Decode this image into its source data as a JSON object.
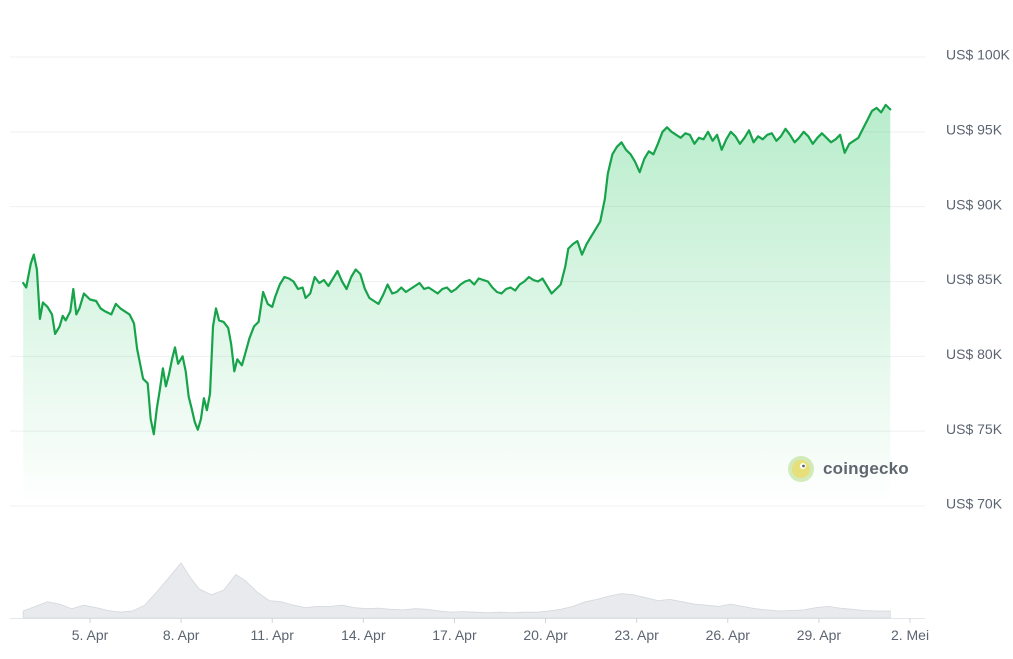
{
  "colors": {
    "line": "#16a34a",
    "fill": "#22c55e",
    "volume": "#e4e6ea"
  },
  "watermark": {
    "text": "coingecko"
  },
  "chart_data": {
    "type": "line",
    "ylim": [
      70000,
      100000
    ],
    "yticks": [
      {
        "value": 100000,
        "label": "US$ 100K"
      },
      {
        "value": 95000,
        "label": "US$ 95K"
      },
      {
        "value": 90000,
        "label": "US$ 90K"
      },
      {
        "value": 85000,
        "label": "US$ 85K"
      },
      {
        "value": 80000,
        "label": "US$ 80K"
      },
      {
        "value": 75000,
        "label": "US$ 75K"
      },
      {
        "value": 70000,
        "label": "US$ 70K"
      }
    ],
    "xlim": [
      2.8,
      33.4
    ],
    "xticks": [
      {
        "value": 5,
        "label": "5. Apr"
      },
      {
        "value": 8,
        "label": "8. Apr"
      },
      {
        "value": 11,
        "label": "11. Apr"
      },
      {
        "value": 14,
        "label": "14. Apr"
      },
      {
        "value": 17,
        "label": "17. Apr"
      },
      {
        "value": 20,
        "label": "20. Apr"
      },
      {
        "value": 23,
        "label": "23. Apr"
      },
      {
        "value": 26,
        "label": "26. Apr"
      },
      {
        "value": 29,
        "label": "29. Apr"
      },
      {
        "value": 32,
        "label": "2. Mei"
      }
    ],
    "series": [
      {
        "values": [
          [
            2.8,
            84900
          ],
          [
            2.9,
            84600
          ],
          [
            3.05,
            86200
          ],
          [
            3.15,
            86800
          ],
          [
            3.25,
            85800
          ],
          [
            3.35,
            82500
          ],
          [
            3.45,
            83600
          ],
          [
            3.6,
            83300
          ],
          [
            3.75,
            82800
          ],
          [
            3.85,
            81500
          ],
          [
            4.0,
            82000
          ],
          [
            4.1,
            82700
          ],
          [
            4.2,
            82400
          ],
          [
            4.35,
            83000
          ],
          [
            4.45,
            84500
          ],
          [
            4.55,
            82800
          ],
          [
            4.65,
            83200
          ],
          [
            4.8,
            84200
          ],
          [
            5.0,
            83800
          ],
          [
            5.2,
            83700
          ],
          [
            5.35,
            83200
          ],
          [
            5.5,
            83000
          ],
          [
            5.7,
            82800
          ],
          [
            5.85,
            83500
          ],
          [
            6.0,
            83200
          ],
          [
            6.15,
            83000
          ],
          [
            6.3,
            82800
          ],
          [
            6.45,
            82200
          ],
          [
            6.55,
            80500
          ],
          [
            6.65,
            79500
          ],
          [
            6.75,
            78500
          ],
          [
            6.9,
            78200
          ],
          [
            7.0,
            75800
          ],
          [
            7.1,
            74800
          ],
          [
            7.2,
            76500
          ],
          [
            7.3,
            77800
          ],
          [
            7.4,
            79200
          ],
          [
            7.5,
            78000
          ],
          [
            7.6,
            78800
          ],
          [
            7.7,
            79800
          ],
          [
            7.8,
            80600
          ],
          [
            7.9,
            79500
          ],
          [
            8.05,
            80000
          ],
          [
            8.15,
            79000
          ],
          [
            8.25,
            77300
          ],
          [
            8.35,
            76500
          ],
          [
            8.45,
            75600
          ],
          [
            8.55,
            75100
          ],
          [
            8.65,
            75800
          ],
          [
            8.75,
            77200
          ],
          [
            8.85,
            76400
          ],
          [
            8.95,
            77500
          ],
          [
            9.05,
            82000
          ],
          [
            9.15,
            83200
          ],
          [
            9.25,
            82400
          ],
          [
            9.4,
            82300
          ],
          [
            9.55,
            81900
          ],
          [
            9.65,
            80800
          ],
          [
            9.75,
            79000
          ],
          [
            9.85,
            79800
          ],
          [
            10.0,
            79400
          ],
          [
            10.1,
            80100
          ],
          [
            10.25,
            81200
          ],
          [
            10.4,
            82000
          ],
          [
            10.55,
            82300
          ],
          [
            10.7,
            84300
          ],
          [
            10.85,
            83500
          ],
          [
            11.0,
            83300
          ],
          [
            11.1,
            84000
          ],
          [
            11.25,
            84800
          ],
          [
            11.4,
            85300
          ],
          [
            11.55,
            85200
          ],
          [
            11.7,
            85000
          ],
          [
            11.85,
            84500
          ],
          [
            12.0,
            84600
          ],
          [
            12.1,
            83900
          ],
          [
            12.25,
            84200
          ],
          [
            12.4,
            85300
          ],
          [
            12.55,
            84900
          ],
          [
            12.7,
            85100
          ],
          [
            12.85,
            84700
          ],
          [
            13.0,
            85200
          ],
          [
            13.15,
            85700
          ],
          [
            13.3,
            85000
          ],
          [
            13.45,
            84500
          ],
          [
            13.6,
            85300
          ],
          [
            13.75,
            85800
          ],
          [
            13.9,
            85500
          ],
          [
            14.05,
            84500
          ],
          [
            14.2,
            83900
          ],
          [
            14.35,
            83700
          ],
          [
            14.5,
            83500
          ],
          [
            14.65,
            84100
          ],
          [
            14.8,
            84800
          ],
          [
            14.95,
            84200
          ],
          [
            15.1,
            84300
          ],
          [
            15.25,
            84600
          ],
          [
            15.4,
            84300
          ],
          [
            15.55,
            84500
          ],
          [
            15.7,
            84700
          ],
          [
            15.85,
            84900
          ],
          [
            16.0,
            84500
          ],
          [
            16.15,
            84600
          ],
          [
            16.3,
            84400
          ],
          [
            16.45,
            84200
          ],
          [
            16.6,
            84500
          ],
          [
            16.75,
            84600
          ],
          [
            16.9,
            84300
          ],
          [
            17.05,
            84500
          ],
          [
            17.2,
            84800
          ],
          [
            17.35,
            85000
          ],
          [
            17.5,
            85100
          ],
          [
            17.65,
            84800
          ],
          [
            17.8,
            85200
          ],
          [
            17.95,
            85100
          ],
          [
            18.1,
            85000
          ],
          [
            18.25,
            84600
          ],
          [
            18.4,
            84300
          ],
          [
            18.55,
            84200
          ],
          [
            18.7,
            84500
          ],
          [
            18.85,
            84600
          ],
          [
            19.0,
            84400
          ],
          [
            19.15,
            84800
          ],
          [
            19.3,
            85000
          ],
          [
            19.45,
            85300
          ],
          [
            19.6,
            85100
          ],
          [
            19.75,
            85000
          ],
          [
            19.9,
            85200
          ],
          [
            20.05,
            84700
          ],
          [
            20.2,
            84200
          ],
          [
            20.35,
            84500
          ],
          [
            20.5,
            84800
          ],
          [
            20.65,
            86000
          ],
          [
            20.75,
            87200
          ],
          [
            20.9,
            87500
          ],
          [
            21.05,
            87700
          ],
          [
            21.2,
            86800
          ],
          [
            21.35,
            87500
          ],
          [
            21.5,
            88000
          ],
          [
            21.65,
            88500
          ],
          [
            21.8,
            89000
          ],
          [
            21.95,
            90500
          ],
          [
            22.05,
            92200
          ],
          [
            22.2,
            93500
          ],
          [
            22.35,
            94000
          ],
          [
            22.5,
            94300
          ],
          [
            22.65,
            93800
          ],
          [
            22.8,
            93500
          ],
          [
            22.95,
            93000
          ],
          [
            23.1,
            92300
          ],
          [
            23.25,
            93200
          ],
          [
            23.4,
            93700
          ],
          [
            23.55,
            93500
          ],
          [
            23.7,
            94200
          ],
          [
            23.85,
            95000
          ],
          [
            24.0,
            95300
          ],
          [
            24.15,
            95000
          ],
          [
            24.3,
            94800
          ],
          [
            24.45,
            94600
          ],
          [
            24.6,
            94900
          ],
          [
            24.75,
            94800
          ],
          [
            24.9,
            94200
          ],
          [
            25.05,
            94600
          ],
          [
            25.2,
            94500
          ],
          [
            25.35,
            95000
          ],
          [
            25.5,
            94400
          ],
          [
            25.65,
            94800
          ],
          [
            25.8,
            93800
          ],
          [
            25.95,
            94500
          ],
          [
            26.1,
            95000
          ],
          [
            26.25,
            94700
          ],
          [
            26.4,
            94200
          ],
          [
            26.55,
            94600
          ],
          [
            26.7,
            95100
          ],
          [
            26.85,
            94300
          ],
          [
            27.0,
            94700
          ],
          [
            27.15,
            94500
          ],
          [
            27.3,
            94800
          ],
          [
            27.45,
            94900
          ],
          [
            27.6,
            94400
          ],
          [
            27.75,
            94700
          ],
          [
            27.9,
            95200
          ],
          [
            28.05,
            94800
          ],
          [
            28.2,
            94300
          ],
          [
            28.35,
            94600
          ],
          [
            28.5,
            95000
          ],
          [
            28.65,
            94700
          ],
          [
            28.8,
            94200
          ],
          [
            28.95,
            94600
          ],
          [
            29.1,
            94900
          ],
          [
            29.25,
            94600
          ],
          [
            29.4,
            94300
          ],
          [
            29.55,
            94500
          ],
          [
            29.7,
            94800
          ],
          [
            29.85,
            93600
          ],
          [
            30.0,
            94200
          ],
          [
            30.15,
            94400
          ],
          [
            30.3,
            94600
          ],
          [
            30.45,
            95200
          ],
          [
            30.6,
            95800
          ],
          [
            30.75,
            96400
          ],
          [
            30.9,
            96600
          ],
          [
            31.05,
            96300
          ],
          [
            31.2,
            96800
          ],
          [
            31.35,
            96500
          ]
        ]
      }
    ],
    "volume": [
      [
        2.8,
        0.12
      ],
      [
        3.2,
        0.2
      ],
      [
        3.6,
        0.28
      ],
      [
        4.0,
        0.24
      ],
      [
        4.4,
        0.16
      ],
      [
        4.8,
        0.22
      ],
      [
        5.2,
        0.18
      ],
      [
        5.6,
        0.13
      ],
      [
        6.0,
        0.1
      ],
      [
        6.4,
        0.12
      ],
      [
        6.8,
        0.22
      ],
      [
        7.2,
        0.45
      ],
      [
        7.6,
        0.7
      ],
      [
        8.0,
        0.95
      ],
      [
        8.3,
        0.7
      ],
      [
        8.6,
        0.5
      ],
      [
        9.0,
        0.4
      ],
      [
        9.4,
        0.48
      ],
      [
        9.8,
        0.75
      ],
      [
        10.1,
        0.65
      ],
      [
        10.5,
        0.45
      ],
      [
        10.9,
        0.3
      ],
      [
        11.3,
        0.28
      ],
      [
        11.7,
        0.22
      ],
      [
        12.1,
        0.18
      ],
      [
        12.5,
        0.2
      ],
      [
        12.9,
        0.2
      ],
      [
        13.3,
        0.22
      ],
      [
        13.7,
        0.18
      ],
      [
        14.1,
        0.16
      ],
      [
        14.5,
        0.17
      ],
      [
        14.9,
        0.15
      ],
      [
        15.3,
        0.14
      ],
      [
        15.7,
        0.16
      ],
      [
        16.1,
        0.15
      ],
      [
        16.5,
        0.12
      ],
      [
        16.9,
        0.1
      ],
      [
        17.3,
        0.11
      ],
      [
        17.7,
        0.1
      ],
      [
        18.1,
        0.09
      ],
      [
        18.5,
        0.1
      ],
      [
        18.9,
        0.09
      ],
      [
        19.3,
        0.1
      ],
      [
        19.7,
        0.1
      ],
      [
        20.1,
        0.12
      ],
      [
        20.5,
        0.15
      ],
      [
        20.9,
        0.2
      ],
      [
        21.3,
        0.28
      ],
      [
        21.7,
        0.32
      ],
      [
        22.1,
        0.38
      ],
      [
        22.5,
        0.42
      ],
      [
        22.9,
        0.4
      ],
      [
        23.3,
        0.35
      ],
      [
        23.7,
        0.3
      ],
      [
        24.1,
        0.32
      ],
      [
        24.5,
        0.28
      ],
      [
        24.9,
        0.24
      ],
      [
        25.3,
        0.22
      ],
      [
        25.7,
        0.2
      ],
      [
        26.1,
        0.24
      ],
      [
        26.5,
        0.2
      ],
      [
        26.9,
        0.16
      ],
      [
        27.3,
        0.14
      ],
      [
        27.7,
        0.12
      ],
      [
        28.1,
        0.13
      ],
      [
        28.5,
        0.14
      ],
      [
        28.9,
        0.18
      ],
      [
        29.3,
        0.2
      ],
      [
        29.7,
        0.17
      ],
      [
        30.1,
        0.15
      ],
      [
        30.5,
        0.13
      ],
      [
        30.9,
        0.12
      ],
      [
        31.35,
        0.12
      ]
    ]
  }
}
